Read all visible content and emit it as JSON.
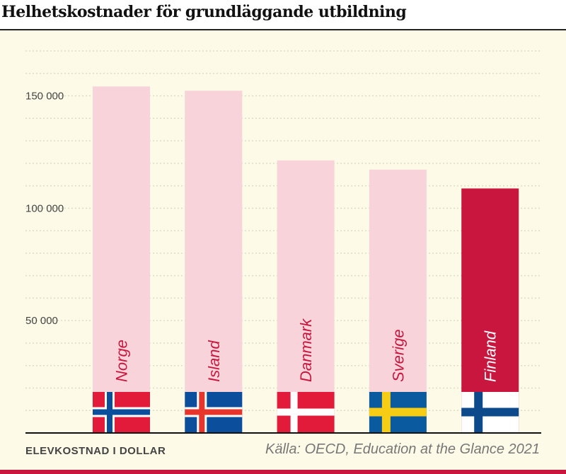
{
  "chart_data": {
    "type": "bar",
    "title": "Helhetskostnader för grundläggande utbildning",
    "ylabel": "ELEVKOSTNAD I DOLLAR",
    "source": "Källa: OECD, Education at the Glance 2021",
    "categories": [
      "Norge",
      "Island",
      "Danmark",
      "Sverige",
      "Finland"
    ],
    "values": [
      154200,
      152300,
      121300,
      117200,
      108800
    ],
    "ylim": [
      0,
      170000
    ],
    "yticks": [
      50000,
      100000,
      150000
    ],
    "ytick_labels": [
      "50 000",
      "100 000",
      "150 000"
    ],
    "grid": true,
    "colors": {
      "default": "#f9d3da",
      "highlight": "#c8163f",
      "label_default": "#c8163f",
      "label_highlight": "#ffffff"
    },
    "highlight": "Finland",
    "flags": [
      "norway-flag",
      "iceland-flag",
      "denmark-flag",
      "sweden-flag",
      "finland-flag"
    ]
  }
}
